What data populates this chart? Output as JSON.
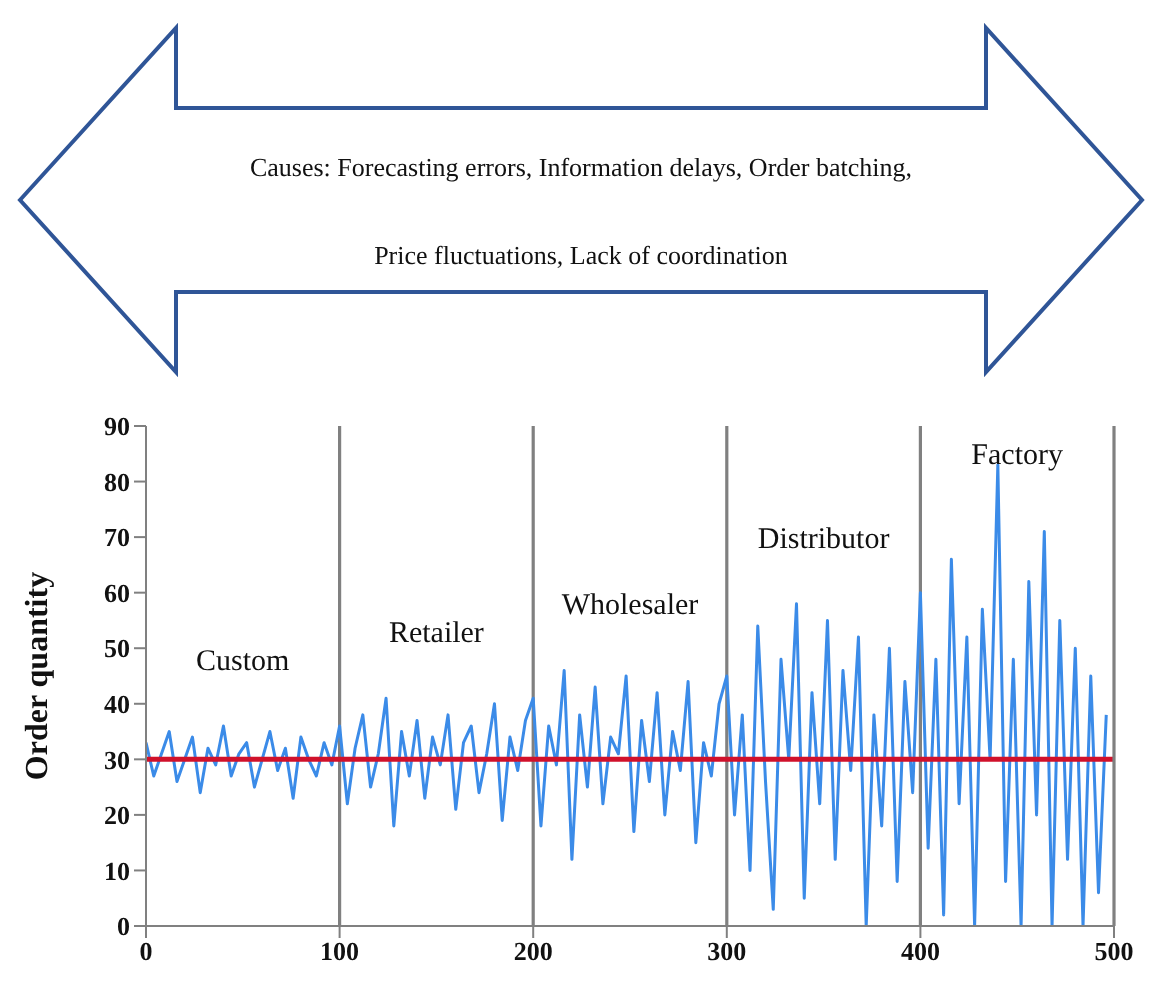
{
  "chart_data": {
    "type": "line",
    "ylabel": "Order quantity",
    "x": [
      0,
      4,
      8,
      12,
      16,
      20,
      24,
      28,
      32,
      36,
      40,
      44,
      48,
      52,
      56,
      60,
      64,
      68,
      72,
      76,
      80,
      84,
      88,
      92,
      96,
      100,
      104,
      108,
      112,
      116,
      120,
      124,
      128,
      132,
      136,
      140,
      144,
      148,
      152,
      156,
      160,
      164,
      168,
      172,
      176,
      180,
      184,
      188,
      192,
      196,
      200,
      204,
      208,
      212,
      216,
      220,
      224,
      228,
      232,
      236,
      240,
      244,
      248,
      252,
      256,
      260,
      264,
      268,
      272,
      276,
      280,
      284,
      288,
      292,
      296,
      300,
      304,
      308,
      312,
      316,
      320,
      324,
      328,
      332,
      336,
      340,
      344,
      348,
      352,
      356,
      360,
      364,
      368,
      372,
      376,
      380,
      384,
      388,
      392,
      396,
      400,
      404,
      408,
      412,
      416,
      420,
      424,
      428,
      432,
      436,
      440,
      444,
      448,
      452,
      456,
      460,
      464,
      468,
      472,
      476,
      480,
      484,
      488,
      492,
      496
    ],
    "series": [
      {
        "color": "#3b8be8",
        "values": [
          33,
          27,
          31,
          35,
          26,
          30,
          34,
          24,
          32,
          29,
          36,
          27,
          31,
          33,
          25,
          30,
          35,
          28,
          32,
          23,
          34,
          30,
          27,
          33,
          29,
          36,
          22,
          32,
          38,
          25,
          31,
          41,
          18,
          35,
          27,
          37,
          23,
          34,
          29,
          38,
          21,
          33,
          36,
          24,
          31,
          40,
          19,
          34,
          28,
          37,
          41,
          18,
          36,
          29,
          46,
          12,
          38,
          25,
          43,
          22,
          34,
          31,
          45,
          17,
          37,
          26,
          42,
          20,
          35,
          28,
          44,
          15,
          33,
          27,
          40,
          45,
          20,
          38,
          10,
          54,
          26,
          3,
          48,
          30,
          58,
          5,
          42,
          22,
          55,
          12,
          46,
          28,
          52,
          0,
          38,
          18,
          50,
          8,
          44,
          24,
          60,
          14,
          48,
          2,
          66,
          22,
          52,
          0,
          57,
          30,
          83,
          8,
          48,
          0,
          62,
          20,
          71,
          0,
          55,
          12,
          50,
          0,
          45,
          6,
          38
        ]
      }
    ],
    "xlim": [
      0,
      500
    ],
    "xticks": [
      0,
      100,
      200,
      300,
      400,
      500
    ],
    "ylim": [
      0,
      90
    ],
    "yticks": [
      0,
      10,
      20,
      30,
      40,
      50,
      60,
      70,
      80,
      90
    ],
    "marker": "none",
    "grid": false,
    "ref_lines": [
      {
        "axis": "y",
        "value": 30,
        "color": "#d0112b"
      },
      {
        "axis": "x",
        "value": 100,
        "color": "#808080"
      },
      {
        "axis": "x",
        "value": 200,
        "color": "#808080"
      },
      {
        "axis": "x",
        "value": 300,
        "color": "#808080"
      },
      {
        "axis": "x",
        "value": 400,
        "color": "#808080"
      }
    ],
    "annotations": [
      "Causes: Forecasting errors, Information delays, Order batching,",
      "Price fluctuations, Lack of coordination",
      "Custom",
      "Retailer",
      "Wholesaler",
      "Distributor",
      "Factory"
    ]
  }
}
